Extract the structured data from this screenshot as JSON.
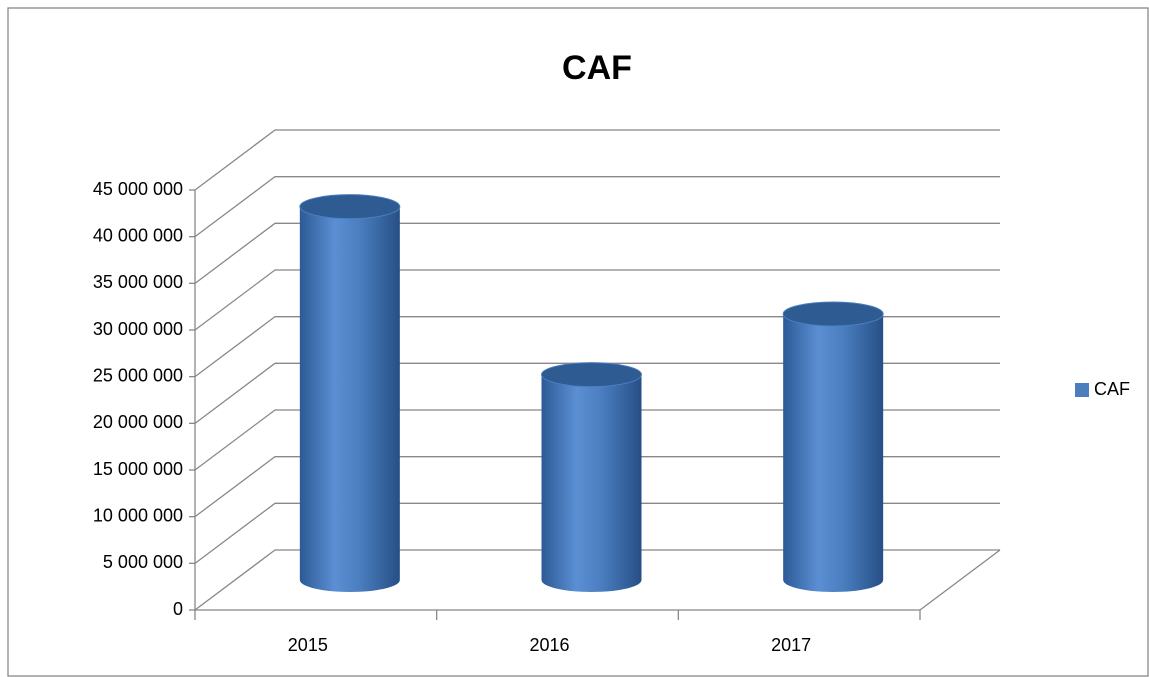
{
  "chart_data": {
    "type": "bar3d",
    "title": "CAF",
    "categories": [
      "2015",
      "2016",
      "2017"
    ],
    "series": [
      {
        "name": "CAF",
        "color": "#4a7ebf",
        "values": [
          40000000,
          22000000,
          28500000
        ]
      }
    ],
    "ylim": [
      0,
      45000000
    ],
    "yticks": [
      0,
      {
        "value": 5000000,
        "label": "5 000 000"
      },
      {
        "value": 10000000,
        "label": "10 000 000"
      },
      {
        "value": 15000000,
        "label": "15 000 000"
      },
      {
        "value": 20000000,
        "label": "20 000 000"
      },
      {
        "value": 25000000,
        "label": "25 000 000"
      },
      {
        "value": 30000000,
        "label": "30 000 000"
      },
      {
        "value": 35000000,
        "label": "35 000 000"
      },
      {
        "value": 40000000,
        "label": "40 000 000"
      },
      {
        "value": 45000000,
        "label": "45 000 000"
      }
    ],
    "grid": true,
    "legend": "right"
  }
}
